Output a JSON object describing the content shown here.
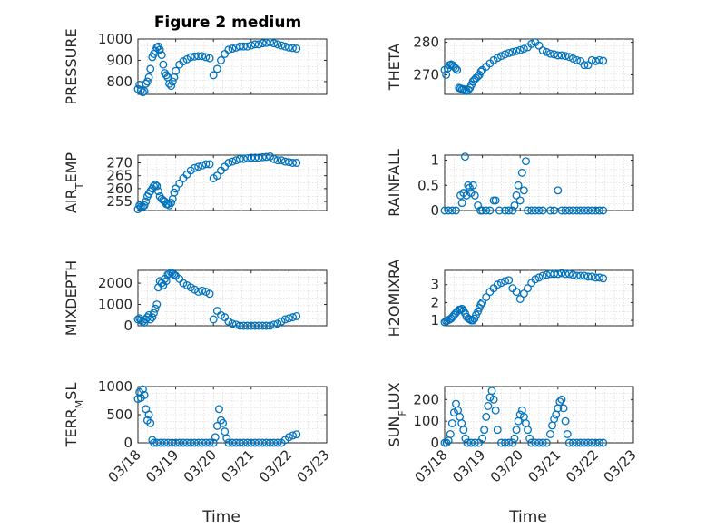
{
  "figure_title": "Figure 2 medium",
  "marker_color": "#0072BD",
  "chart_data": [
    {
      "type": "scatter",
      "ylabel": "PRESSURE",
      "xlabel": "",
      "ylim": [
        740,
        1000
      ],
      "yticks": [
        800,
        900,
        1000
      ],
      "xlim": [
        0,
        5
      ],
      "xticks": [
        0,
        1,
        2,
        3,
        4,
        5
      ],
      "xticklabels": [],
      "grid": true,
      "x": [
        0.0,
        0.04,
        0.08,
        0.13,
        0.17,
        0.21,
        0.25,
        0.29,
        0.33,
        0.38,
        0.42,
        0.46,
        0.5,
        0.54,
        0.58,
        0.63,
        0.67,
        0.71,
        0.75,
        0.79,
        0.83,
        0.88,
        0.92,
        0.96,
        1.0,
        1.1,
        1.2,
        1.3,
        1.4,
        1.5,
        1.6,
        1.7,
        1.8,
        1.9,
        2.0,
        2.1,
        2.2,
        2.3,
        2.4,
        2.5,
        2.6,
        2.7,
        2.8,
        2.9,
        3.0,
        3.1,
        3.2,
        3.3,
        3.4,
        3.5,
        3.6,
        3.7,
        3.8,
        3.9,
        4.0,
        4.1,
        4.2
      ],
      "y": [
        765,
        785,
        760,
        750,
        755,
        790,
        800,
        820,
        860,
        915,
        930,
        945,
        960,
        965,
        950,
        925,
        880,
        840,
        830,
        820,
        790,
        780,
        800,
        820,
        850,
        880,
        895,
        905,
        915,
        918,
        920,
        920,
        915,
        910,
        830,
        860,
        900,
        930,
        950,
        955,
        960,
        965,
        965,
        965,
        970,
        975,
        975,
        980,
        982,
        985,
        980,
        975,
        970,
        965,
        960,
        958,
        955
      ]
    },
    {
      "type": "scatter",
      "ylabel": "THETA",
      "xlabel": "",
      "ylim": [
        264,
        281
      ],
      "yticks": [
        270,
        280
      ],
      "xlim": [
        0,
        5
      ],
      "xticks": [
        0,
        1,
        2,
        3,
        4,
        5
      ],
      "xticklabels": [],
      "grid": true,
      "x": [
        0.0,
        0.04,
        0.08,
        0.13,
        0.17,
        0.21,
        0.25,
        0.29,
        0.33,
        0.38,
        0.42,
        0.46,
        0.5,
        0.54,
        0.58,
        0.63,
        0.67,
        0.71,
        0.75,
        0.79,
        0.83,
        0.88,
        0.92,
        0.96,
        1.0,
        1.1,
        1.2,
        1.3,
        1.4,
        1.5,
        1.6,
        1.7,
        1.8,
        1.9,
        2.0,
        2.1,
        2.2,
        2.3,
        2.4,
        2.5,
        2.6,
        2.7,
        2.8,
        2.9,
        3.0,
        3.1,
        3.2,
        3.3,
        3.4,
        3.5,
        3.6,
        3.7,
        3.8,
        3.9,
        4.0,
        4.1,
        4.2
      ],
      "y": [
        271.5,
        270,
        272,
        273,
        273.2,
        273,
        272.5,
        272,
        271.5,
        266,
        265.8,
        265.5,
        265.6,
        265.2,
        265,
        265.4,
        266,
        267,
        268,
        268.5,
        269,
        269.5,
        270,
        271,
        271.5,
        272.5,
        273.5,
        274.5,
        275.2,
        275.8,
        276.3,
        276.7,
        277,
        277.3,
        277.6,
        278,
        278.5,
        279.5,
        280,
        279,
        277.5,
        277,
        276.5,
        276.3,
        276,
        276,
        275.8,
        275.5,
        275,
        274.5,
        274.2,
        273,
        273,
        274.5,
        274.2,
        274.5,
        274.3
      ]
    },
    {
      "type": "scatter",
      "ylabel": "AIR_TEMP",
      "xlabel": "",
      "ylim": [
        251.5,
        273
      ],
      "yticks": [
        255,
        260,
        265,
        270
      ],
      "xlim": [
        0,
        5
      ],
      "xticks": [
        0,
        1,
        2,
        3,
        4,
        5
      ],
      "xticklabels": [],
      "grid": true,
      "x": [
        0.0,
        0.04,
        0.08,
        0.13,
        0.17,
        0.21,
        0.25,
        0.29,
        0.33,
        0.38,
        0.42,
        0.46,
        0.5,
        0.54,
        0.58,
        0.63,
        0.67,
        0.71,
        0.75,
        0.79,
        0.83,
        0.88,
        0.92,
        0.96,
        1.0,
        1.1,
        1.2,
        1.3,
        1.4,
        1.5,
        1.6,
        1.7,
        1.8,
        1.9,
        2.0,
        2.1,
        2.2,
        2.3,
        2.4,
        2.5,
        2.6,
        2.7,
        2.8,
        2.9,
        3.0,
        3.1,
        3.2,
        3.3,
        3.4,
        3.5,
        3.6,
        3.7,
        3.8,
        3.9,
        4.0,
        4.1,
        4.2
      ],
      "y": [
        252,
        253.5,
        253,
        253,
        253.5,
        255,
        257,
        258,
        259,
        260,
        261,
        261.5,
        261,
        259,
        257,
        256,
        255.5,
        255,
        254,
        254,
        253.5,
        254.5,
        256,
        258.5,
        260,
        262,
        264,
        265.5,
        267,
        268,
        268.5,
        269,
        269.5,
        269.5,
        264,
        265,
        267,
        268.5,
        270,
        270.5,
        271,
        271.5,
        271.5,
        271.8,
        272,
        272,
        272,
        272.2,
        272.3,
        272.5,
        271.5,
        271,
        271,
        270.5,
        270.3,
        270,
        270
      ]
    },
    {
      "type": "scatter",
      "ylabel": "RAINFALL",
      "xlabel": "",
      "ylim": [
        0,
        1.1
      ],
      "yticks": [
        0,
        0.5,
        1
      ],
      "xlim": [
        0,
        5
      ],
      "xticks": [
        0,
        1,
        2,
        3,
        4,
        5
      ],
      "xticklabels": [],
      "grid": true,
      "x": [
        0.0,
        0.1,
        0.2,
        0.3,
        0.42,
        0.46,
        0.5,
        0.54,
        0.58,
        0.62,
        0.66,
        0.7,
        0.75,
        0.8,
        0.88,
        0.95,
        1.0,
        1.1,
        1.2,
        1.3,
        1.35,
        1.45,
        1.6,
        1.7,
        1.8,
        1.85,
        1.9,
        1.95,
        2.0,
        2.05,
        2.1,
        2.15,
        2.2,
        2.3,
        2.4,
        2.5,
        2.6,
        2.8,
        2.9,
        3.0,
        3.1,
        3.2,
        3.3,
        3.4,
        3.5,
        3.6,
        3.7,
        3.8,
        3.9,
        4.0,
        4.1,
        4.2
      ],
      "y": [
        0,
        0,
        0,
        0,
        0.3,
        0.15,
        0.35,
        1.07,
        0.3,
        0.5,
        0.45,
        0.35,
        0.5,
        0.3,
        0.1,
        0,
        0,
        0,
        0,
        0.2,
        0.2,
        0,
        0,
        0,
        0,
        0.1,
        0.3,
        0.5,
        0.2,
        0.75,
        0.4,
        0.98,
        0,
        0,
        0,
        0,
        0,
        0,
        0,
        0.4,
        0,
        0,
        0,
        0,
        0,
        0,
        0,
        0,
        0,
        0,
        0,
        0
      ]
    },
    {
      "type": "scatter",
      "ylabel": "MIXDEPTH",
      "xlabel": "",
      "ylim": [
        0,
        2600
      ],
      "yticks": [
        0,
        1000,
        2000
      ],
      "xlim": [
        0,
        5
      ],
      "xticks": [
        0,
        1,
        2,
        3,
        4,
        5
      ],
      "xticklabels": [],
      "grid": true,
      "x": [
        0.0,
        0.04,
        0.08,
        0.13,
        0.17,
        0.21,
        0.25,
        0.29,
        0.33,
        0.38,
        0.42,
        0.46,
        0.5,
        0.54,
        0.58,
        0.63,
        0.67,
        0.71,
        0.75,
        0.79,
        0.83,
        0.88,
        0.92,
        0.96,
        1.0,
        1.1,
        1.2,
        1.3,
        1.4,
        1.5,
        1.6,
        1.7,
        1.8,
        1.9,
        2.0,
        2.1,
        2.2,
        2.3,
        2.4,
        2.5,
        2.6,
        2.7,
        2.8,
        2.9,
        3.0,
        3.1,
        3.2,
        3.3,
        3.4,
        3.5,
        3.6,
        3.7,
        3.8,
        3.9,
        4.0,
        4.1,
        4.2
      ],
      "y": [
        300,
        350,
        250,
        200,
        150,
        300,
        400,
        500,
        300,
        400,
        600,
        800,
        1000,
        1800,
        2100,
        2000,
        1900,
        2200,
        2100,
        2400,
        2450,
        2500,
        2450,
        2400,
        2350,
        2200,
        2000,
        1900,
        1800,
        1700,
        1600,
        1650,
        1600,
        1500,
        300,
        700,
        500,
        400,
        200,
        100,
        50,
        0,
        0,
        0,
        0,
        0,
        0,
        0,
        0,
        0,
        50,
        100,
        200,
        300,
        350,
        400,
        450
      ]
    },
    {
      "type": "scatter",
      "ylabel": "H2OMIXRA",
      "xlabel": "",
      "ylim": [
        0.7,
        3.8
      ],
      "yticks": [
        1,
        2,
        3
      ],
      "xlim": [
        0,
        5
      ],
      "xticks": [
        0,
        1,
        2,
        3,
        4,
        5
      ],
      "xticklabels": [],
      "grid": true,
      "x": [
        0.0,
        0.04,
        0.08,
        0.13,
        0.17,
        0.21,
        0.25,
        0.29,
        0.33,
        0.38,
        0.42,
        0.46,
        0.5,
        0.54,
        0.58,
        0.63,
        0.67,
        0.71,
        0.75,
        0.79,
        0.83,
        0.88,
        0.92,
        0.96,
        1.0,
        1.1,
        1.2,
        1.3,
        1.4,
        1.5,
        1.6,
        1.7,
        1.8,
        1.9,
        2.0,
        2.1,
        2.2,
        2.3,
        2.4,
        2.5,
        2.6,
        2.7,
        2.8,
        2.9,
        3.0,
        3.1,
        3.2,
        3.3,
        3.4,
        3.5,
        3.6,
        3.7,
        3.8,
        3.9,
        4.0,
        4.1,
        4.2
      ],
      "y": [
        0.9,
        0.95,
        1.0,
        1.05,
        1.1,
        1.2,
        1.3,
        1.4,
        1.5,
        1.6,
        1.6,
        1.65,
        1.55,
        1.4,
        1.2,
        1.1,
        1.05,
        1.0,
        1.0,
        1.1,
        1.3,
        1.5,
        1.7,
        1.9,
        2.0,
        2.3,
        2.6,
        2.8,
        3.0,
        3.1,
        3.2,
        3.25,
        2.8,
        2.6,
        2.2,
        2.5,
        2.8,
        3.1,
        3.3,
        3.4,
        3.5,
        3.55,
        3.6,
        3.6,
        3.6,
        3.65,
        3.6,
        3.6,
        3.55,
        3.5,
        3.5,
        3.5,
        3.45,
        3.45,
        3.4,
        3.4,
        3.35
      ]
    },
    {
      "type": "scatter",
      "ylabel": "TERR_MSL",
      "xlabel": "Time",
      "ylim": [
        0,
        1000
      ],
      "yticks": [
        0,
        500,
        1000
      ],
      "xlim": [
        0,
        5
      ],
      "xticks": [
        0,
        1,
        2,
        3,
        4,
        5
      ],
      "xticklabels": [
        "03/18",
        "03/19",
        "03/20",
        "03/21",
        "03/22",
        "03/23"
      ],
      "grid": true,
      "x": [
        0.0,
        0.04,
        0.08,
        0.13,
        0.17,
        0.21,
        0.25,
        0.29,
        0.33,
        0.38,
        0.42,
        0.5,
        0.6,
        0.7,
        0.8,
        0.9,
        1.0,
        1.1,
        1.2,
        1.3,
        1.4,
        1.5,
        1.6,
        1.7,
        1.8,
        1.9,
        2.0,
        2.05,
        2.1,
        2.15,
        2.2,
        2.25,
        2.3,
        2.35,
        2.4,
        2.5,
        2.6,
        2.7,
        2.8,
        2.9,
        3.0,
        3.1,
        3.2,
        3.3,
        3.4,
        3.5,
        3.6,
        3.7,
        3.8,
        3.9,
        4.0,
        4.1,
        4.2
      ],
      "y": [
        780,
        900,
        800,
        950,
        850,
        600,
        400,
        500,
        350,
        50,
        0,
        0,
        0,
        0,
        0,
        0,
        0,
        0,
        0,
        0,
        0,
        0,
        0,
        0,
        0,
        0,
        0,
        100,
        300,
        600,
        400,
        350,
        200,
        80,
        0,
        0,
        0,
        0,
        0,
        0,
        0,
        0,
        0,
        0,
        0,
        0,
        0,
        0,
        0,
        50,
        100,
        130,
        150
      ]
    },
    {
      "type": "scatter",
      "ylabel": "SUN_FLUX",
      "xlabel": "Time",
      "ylim": [
        0,
        260
      ],
      "yticks": [
        0,
        100,
        200
      ],
      "xlim": [
        0,
        5
      ],
      "xticks": [
        0,
        1,
        2,
        3,
        4,
        5
      ],
      "xticklabels": [
        "03/18",
        "03/19",
        "03/20",
        "03/21",
        "03/22",
        "03/23"
      ],
      "grid": true,
      "x": [
        0.0,
        0.05,
        0.1,
        0.15,
        0.2,
        0.25,
        0.3,
        0.35,
        0.4,
        0.45,
        0.5,
        0.55,
        0.6,
        0.7,
        0.8,
        0.9,
        1.0,
        1.05,
        1.1,
        1.15,
        1.2,
        1.25,
        1.3,
        1.35,
        1.4,
        1.5,
        1.6,
        1.7,
        1.8,
        1.85,
        1.9,
        1.95,
        2.0,
        2.05,
        2.1,
        2.15,
        2.2,
        2.25,
        2.3,
        2.4,
        2.5,
        2.6,
        2.7,
        2.8,
        2.85,
        2.9,
        2.95,
        3.0,
        3.05,
        3.1,
        3.15,
        3.2,
        3.25,
        3.3,
        3.4,
        3.5,
        3.6,
        3.7,
        3.8,
        3.9,
        4.0,
        4.1,
        4.2
      ],
      "y": [
        0,
        0,
        10,
        40,
        90,
        140,
        180,
        150,
        120,
        90,
        60,
        20,
        0,
        0,
        0,
        0,
        20,
        60,
        120,
        170,
        210,
        240,
        200,
        150,
        60,
        0,
        0,
        0,
        0,
        20,
        60,
        100,
        130,
        150,
        120,
        90,
        60,
        20,
        0,
        0,
        0,
        0,
        0,
        40,
        80,
        110,
        130,
        160,
        190,
        200,
        160,
        100,
        40,
        0,
        0,
        0,
        0,
        0,
        0,
        0,
        0,
        0,
        0
      ]
    }
  ]
}
